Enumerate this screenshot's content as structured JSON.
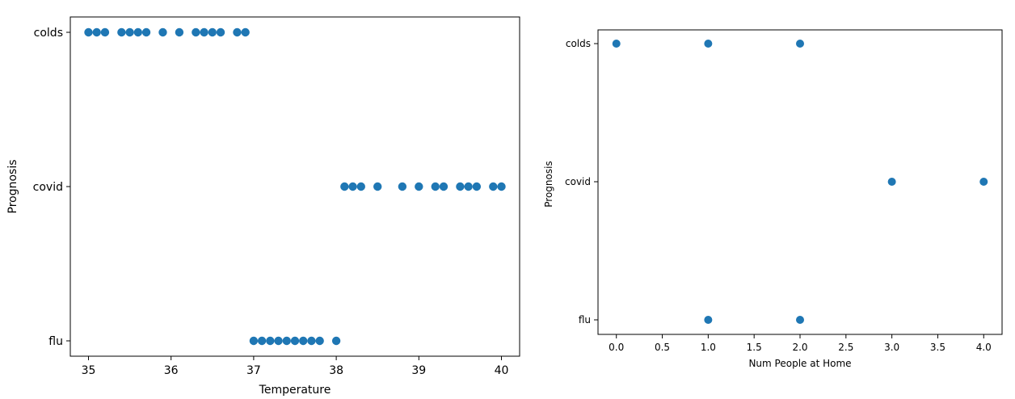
{
  "chart_data": [
    {
      "type": "scatter",
      "xlabel": "Temperature",
      "ylabel": "Prognosis",
      "xlim": [
        34.78,
        40.22
      ],
      "xticks": [
        35,
        36,
        37,
        38,
        39,
        40
      ],
      "xtick_labels": [
        "35",
        "36",
        "37",
        "38",
        "39",
        "40"
      ],
      "categories": [
        "flu",
        "covid",
        "colds"
      ],
      "ytick_labels": [
        "colds",
        "covid",
        "flu"
      ],
      "marker_color": "#1f77b4",
      "grid": false,
      "points": [
        {
          "x": 35.0,
          "y": "colds"
        },
        {
          "x": 35.1,
          "y": "colds"
        },
        {
          "x": 35.2,
          "y": "colds"
        },
        {
          "x": 35.4,
          "y": "colds"
        },
        {
          "x": 35.5,
          "y": "colds"
        },
        {
          "x": 35.6,
          "y": "colds"
        },
        {
          "x": 35.7,
          "y": "colds"
        },
        {
          "x": 35.9,
          "y": "colds"
        },
        {
          "x": 36.1,
          "y": "colds"
        },
        {
          "x": 36.3,
          "y": "colds"
        },
        {
          "x": 36.4,
          "y": "colds"
        },
        {
          "x": 36.5,
          "y": "colds"
        },
        {
          "x": 36.6,
          "y": "colds"
        },
        {
          "x": 36.8,
          "y": "colds"
        },
        {
          "x": 36.9,
          "y": "colds"
        },
        {
          "x": 38.1,
          "y": "covid"
        },
        {
          "x": 38.2,
          "y": "covid"
        },
        {
          "x": 38.3,
          "y": "covid"
        },
        {
          "x": 38.5,
          "y": "covid"
        },
        {
          "x": 38.8,
          "y": "covid"
        },
        {
          "x": 39.0,
          "y": "covid"
        },
        {
          "x": 39.2,
          "y": "covid"
        },
        {
          "x": 39.3,
          "y": "covid"
        },
        {
          "x": 39.5,
          "y": "covid"
        },
        {
          "x": 39.6,
          "y": "covid"
        },
        {
          "x": 39.7,
          "y": "covid"
        },
        {
          "x": 39.9,
          "y": "covid"
        },
        {
          "x": 40.0,
          "y": "covid"
        },
        {
          "x": 37.0,
          "y": "flu"
        },
        {
          "x": 37.1,
          "y": "flu"
        },
        {
          "x": 37.2,
          "y": "flu"
        },
        {
          "x": 37.3,
          "y": "flu"
        },
        {
          "x": 37.4,
          "y": "flu"
        },
        {
          "x": 37.5,
          "y": "flu"
        },
        {
          "x": 37.6,
          "y": "flu"
        },
        {
          "x": 37.7,
          "y": "flu"
        },
        {
          "x": 37.8,
          "y": "flu"
        },
        {
          "x": 38.0,
          "y": "flu"
        }
      ]
    },
    {
      "type": "scatter",
      "xlabel": "Num People at Home",
      "ylabel": "Prognosis",
      "xlim": [
        -0.2,
        4.2
      ],
      "xticks": [
        0.0,
        0.5,
        1.0,
        1.5,
        2.0,
        2.5,
        3.0,
        3.5,
        4.0
      ],
      "xtick_labels": [
        "0.0",
        "0.5",
        "1.0",
        "1.5",
        "2.0",
        "2.5",
        "3.0",
        "3.5",
        "4.0"
      ],
      "categories": [
        "flu",
        "covid",
        "colds"
      ],
      "ytick_labels": [
        "colds",
        "covid",
        "flu"
      ],
      "marker_color": "#1f77b4",
      "grid": false,
      "points": [
        {
          "x": 0,
          "y": "colds"
        },
        {
          "x": 1,
          "y": "colds"
        },
        {
          "x": 2,
          "y": "colds"
        },
        {
          "x": 3,
          "y": "covid"
        },
        {
          "x": 4,
          "y": "covid"
        },
        {
          "x": 1,
          "y": "flu"
        },
        {
          "x": 2,
          "y": "flu"
        }
      ]
    }
  ]
}
